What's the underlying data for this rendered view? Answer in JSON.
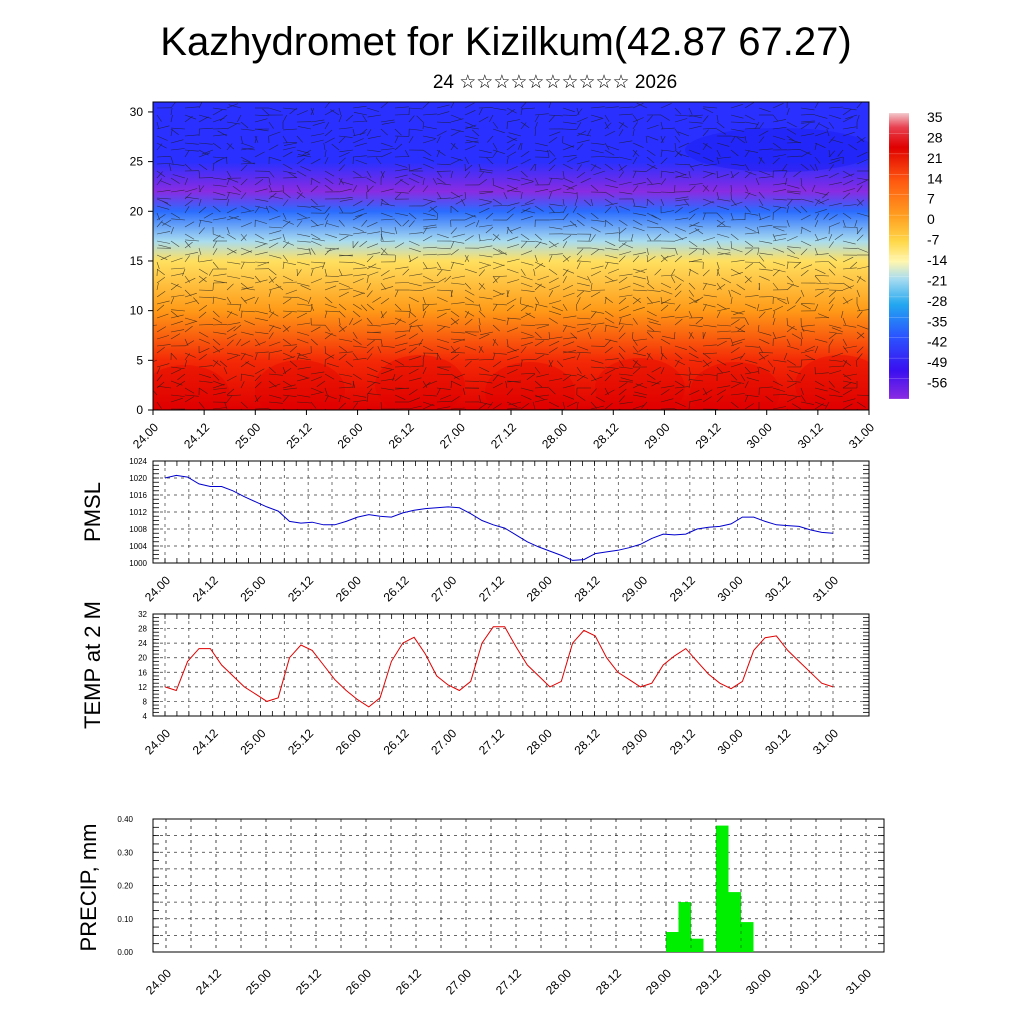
{
  "header": {
    "title": "Kazhydromet for Kizilkum(42.87 67.27)",
    "subtitle": "24 ☆☆☆☆☆☆☆☆☆☆ 2026"
  },
  "chart_data": [
    {
      "type": "heatmap",
      "description_label": "",
      "x_tick_labels": [
        "24.00",
        "24.12",
        "25.00",
        "25.12",
        "26.00",
        "26.12",
        "27.00",
        "27.12",
        "28.00",
        "28.12",
        "29.00",
        "29.12",
        "30.00",
        "30.12",
        "31.00"
      ],
      "y_ticks": [
        0,
        5,
        10,
        15,
        20,
        25,
        30
      ],
      "ylim": [
        0,
        31
      ],
      "colorbar_labels": [
        "35",
        "28",
        "21",
        "14",
        "7",
        "0",
        "-7",
        "-14",
        "-21",
        "-28",
        "-35",
        "-42",
        "-49",
        "-56"
      ],
      "colorbar_range": [
        -60,
        38
      ],
      "value_bands": [
        {
          "level": 0,
          "temp": 26
        },
        {
          "level": 5,
          "temp": 22
        },
        {
          "level": 10,
          "temp": 10
        },
        {
          "level": 15,
          "temp": -10
        },
        {
          "level": 17,
          "temp": -20
        },
        {
          "level": 20,
          "temp": -44
        },
        {
          "level": 22,
          "temp": -60
        },
        {
          "level": 25,
          "temp": -52
        },
        {
          "level": 31,
          "temp": -52
        }
      ],
      "overlay": "wind-barbs"
    },
    {
      "type": "line",
      "ylabel": "PMSL",
      "ylim": [
        1000,
        1024
      ],
      "y_ticks": [
        1000,
        1004,
        1008,
        1012,
        1016,
        1020,
        1024
      ],
      "x_tick_labels": [
        "24.00",
        "24.12",
        "25.00",
        "25.12",
        "26.00",
        "26.12",
        "27.00",
        "27.12",
        "28.00",
        "28.12",
        "29.00",
        "29.12",
        "30.00",
        "30.12",
        "31.00"
      ],
      "color": "#0000cc",
      "values": [
        1020,
        1020.6,
        1020.2,
        1018.6,
        1018,
        1018,
        1017,
        1015.6,
        1014.4,
        1013.2,
        1012.2,
        1009.8,
        1009.4,
        1009.6,
        1009,
        1009,
        1009.8,
        1010.8,
        1011.4,
        1011,
        1010.8,
        1011.8,
        1012.4,
        1012.8,
        1013,
        1013.2,
        1013,
        1011.6,
        1010,
        1009,
        1008.2,
        1006.6,
        1005,
        1003.8,
        1002.8,
        1001.8,
        1000.6,
        1000.8,
        1002.2,
        1002.6,
        1003,
        1003.6,
        1004.4,
        1005.8,
        1006.8,
        1006.6,
        1006.8,
        1008,
        1008.4,
        1008.6,
        1009.2,
        1010.8,
        1010.8,
        1009.8,
        1009,
        1008.8,
        1008.6,
        1007.8,
        1007.2,
        1007
      ]
    },
    {
      "type": "line",
      "ylabel": "TEMP at 2 M",
      "ylim": [
        4,
        32
      ],
      "y_ticks": [
        4,
        8,
        12,
        16,
        20,
        24,
        28,
        32
      ],
      "x_tick_labels": [
        "24.00",
        "24.12",
        "25.00",
        "25.12",
        "26.00",
        "26.12",
        "27.00",
        "27.12",
        "28.00",
        "28.12",
        "29.00",
        "29.12",
        "30.00",
        "30.12",
        "31.00"
      ],
      "color": "#e00000",
      "values": [
        12,
        11,
        19,
        22.5,
        22.5,
        18,
        15,
        12,
        10,
        8,
        9,
        20,
        23.5,
        22,
        18,
        14,
        11,
        8.5,
        6.5,
        9,
        19,
        24,
        25.6,
        21,
        15,
        12.5,
        11,
        13.5,
        24,
        28.5,
        28.5,
        23,
        18,
        15,
        12,
        13.5,
        24,
        27.5,
        26,
        20,
        16,
        14,
        12,
        13,
        18,
        20.5,
        22.5,
        19,
        15.5,
        13,
        11.5,
        13.5,
        22,
        25.5,
        26,
        22,
        19,
        16,
        13,
        12
      ]
    },
    {
      "type": "bar",
      "ylabel": "PRECIP, mm",
      "ylim": [
        0,
        0.4
      ],
      "y_tick_labels": [
        "0.00",
        "0.10",
        "0.20",
        "0.30",
        "0.40"
      ],
      "x_tick_labels": [
        "24.00",
        "24.12",
        "25.00",
        "25.12",
        "26.00",
        "26.12",
        "27.00",
        "27.12",
        "28.00",
        "28.12",
        "29.00",
        "29.12",
        "30.00",
        "30.12",
        "31.00"
      ],
      "color": "#00ee00",
      "bars": [
        {
          "x": 29.0,
          "value": 0.06
        },
        {
          "x": 29.125,
          "value": 0.15
        },
        {
          "x": 29.25,
          "value": 0.04
        },
        {
          "x": 29.5,
          "value": 0.38
        },
        {
          "x": 29.625,
          "value": 0.18
        },
        {
          "x": 29.75,
          "value": 0.09
        }
      ]
    }
  ]
}
